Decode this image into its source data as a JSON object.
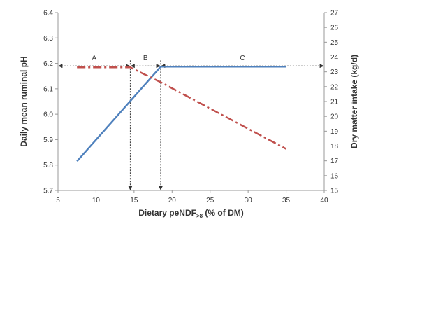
{
  "chart_data": {
    "type": "line",
    "x_axis": {
      "label_main": "Dietary peNDF",
      "label_sub": ">8",
      "label_tail": " (% of DM)",
      "ticks": [
        5,
        10,
        15,
        20,
        25,
        30,
        35,
        40
      ],
      "range": [
        5,
        40
      ]
    },
    "y_axis_left": {
      "label": "Daily mean ruminal pH",
      "ticks": [
        "5.7",
        "5.8",
        "5.9",
        "6.0",
        "6.1",
        "6.2",
        "6.3",
        "6.4"
      ],
      "range": [
        5.7,
        6.4
      ]
    },
    "y_axis_right": {
      "label": "Dry matter intake (kg/d)",
      "ticks": [
        "15",
        "16",
        "17",
        "18",
        "19",
        "20",
        "21",
        "22",
        "23",
        "24",
        "25",
        "26",
        "27"
      ],
      "range": [
        15,
        27
      ]
    },
    "series": [
      {
        "axis": "left",
        "style": "solid",
        "color": "#4f81bd",
        "points": [
          [
            7.5,
            5.815
          ],
          [
            18.5,
            6.187
          ],
          [
            35,
            6.187
          ]
        ]
      },
      {
        "axis": "right",
        "style": "dashdot",
        "color": "#c0504d",
        "points": [
          [
            7.5,
            23.3
          ],
          [
            14.5,
            23.3
          ],
          [
            18.5,
            22.3
          ],
          [
            35,
            17.8
          ]
        ]
      }
    ],
    "zones": [
      {
        "label": "A",
        "from": 5,
        "to": 14.5
      },
      {
        "label": "B",
        "from": 14.5,
        "to": 18.5
      },
      {
        "label": "C",
        "from": 18.5,
        "to": 40
      }
    ],
    "zone_arrow_y": 6.19,
    "vertical_markers": [
      14.5,
      18.5
    ],
    "grid": false,
    "legend": "none"
  }
}
